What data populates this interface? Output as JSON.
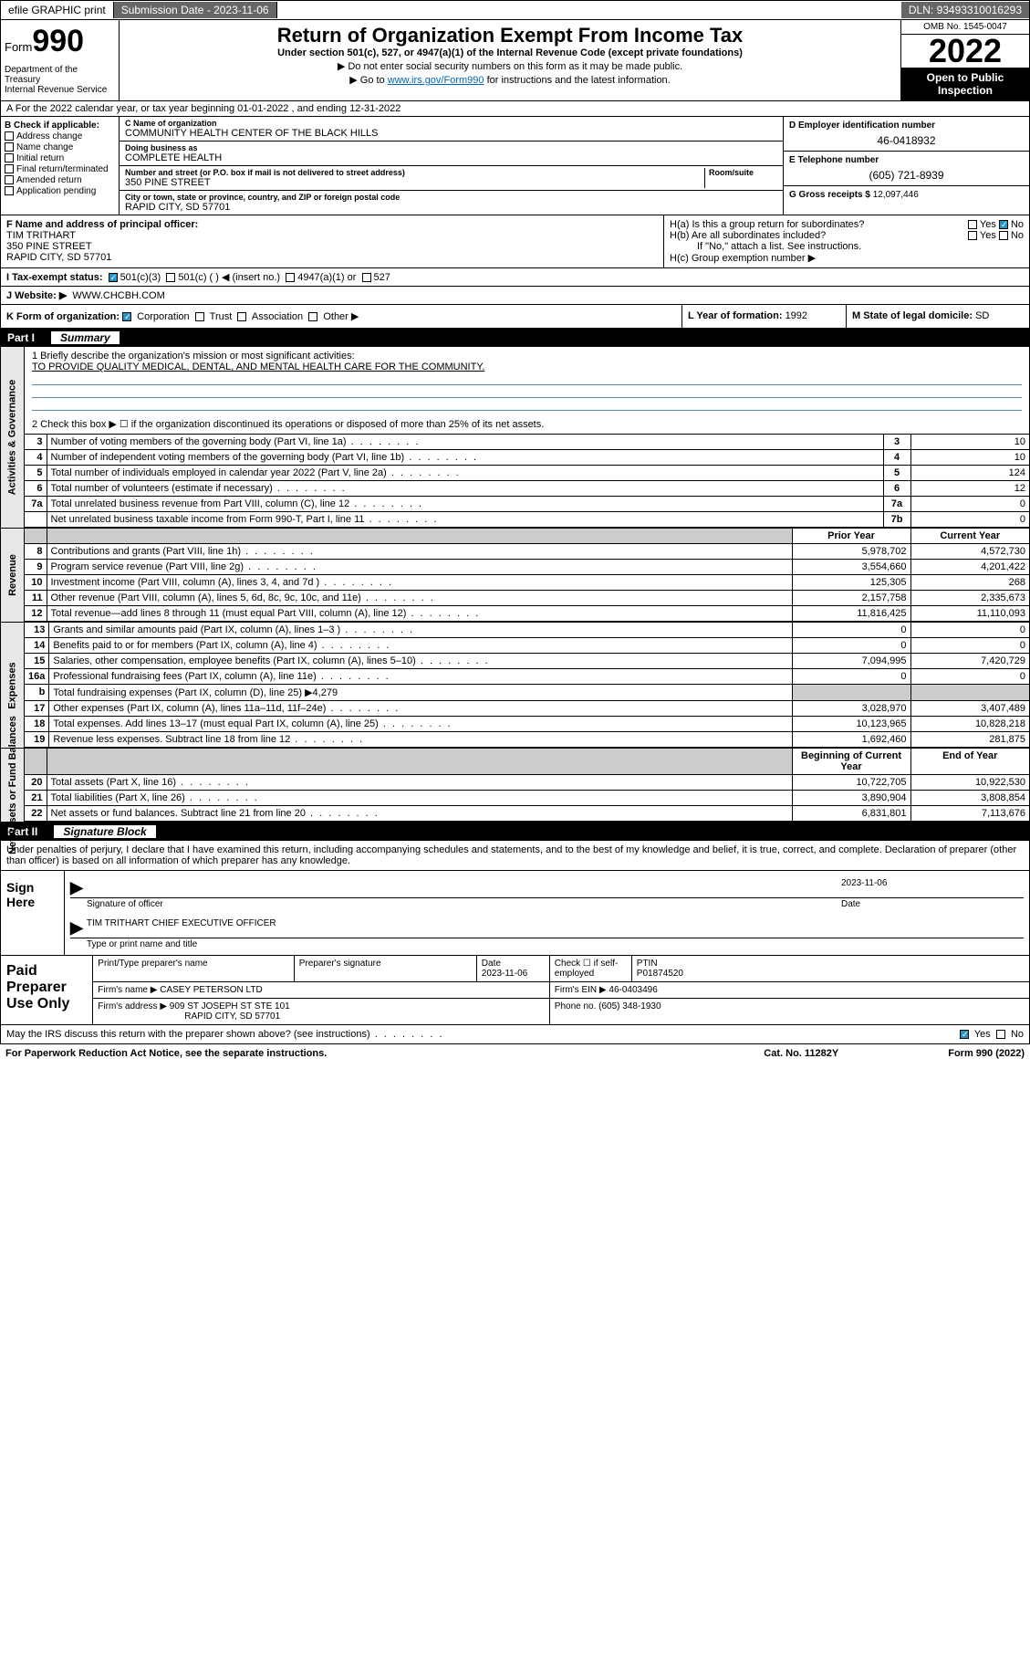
{
  "topbar": {
    "efile": "efile GRAPHIC print",
    "submission_label": "Submission Date - ",
    "submission_date": "2023-11-06",
    "dln_label": "DLN: ",
    "dln": "93493310016293"
  },
  "header": {
    "form_prefix": "Form",
    "form_no": "990",
    "dept": "Department of the Treasury\nInternal Revenue Service",
    "title": "Return of Organization Exempt From Income Tax",
    "subtitle": "Under section 501(c), 527, or 4947(a)(1) of the Internal Revenue Code (except private foundations)",
    "note1": "▶ Do not enter social security numbers on this form as it may be made public.",
    "note2_pre": "▶ Go to ",
    "note2_link": "www.irs.gov/Form990",
    "note2_post": " for instructions and the latest information.",
    "omb": "OMB No. 1545-0047",
    "year": "2022",
    "open": "Open to Public Inspection"
  },
  "row_a": "A For the 2022 calendar year, or tax year beginning 01-01-2022   , and ending 12-31-2022",
  "col_b": {
    "hdr": "B Check if applicable:",
    "items": [
      "Address change",
      "Name change",
      "Initial return",
      "Final return/terminated",
      "Amended return",
      "Application pending"
    ]
  },
  "col_c": {
    "name_lbl": "C Name of organization",
    "name": "COMMUNITY HEALTH CENTER OF THE BLACK HILLS",
    "dba_lbl": "Doing business as",
    "dba": "COMPLETE HEALTH",
    "addr_lbl": "Number and street (or P.O. box if mail is not delivered to street address)",
    "room_lbl": "Room/suite",
    "addr": "350 PINE STREET",
    "city_lbl": "City or town, state or province, country, and ZIP or foreign postal code",
    "city": "RAPID CITY, SD  57701"
  },
  "col_d": {
    "ein_lbl": "D Employer identification number",
    "ein": "46-0418932",
    "tel_lbl": "E Telephone number",
    "tel": "(605) 721-8939",
    "gross_lbl": "G Gross receipts $ ",
    "gross": "12,097,446"
  },
  "fgh": {
    "f_lbl": "F Name and address of principal officer:",
    "f_name": "TIM TRITHART",
    "f_addr1": "350 PINE STREET",
    "f_addr2": "RAPID CITY, SD  57701",
    "ha": "H(a)  Is this a group return for subordinates?",
    "hb": "H(b)  Are all subordinates included?",
    "hb_note": "If \"No,\" attach a list. See instructions.",
    "hc": "H(c)  Group exemption number ▶",
    "yes": "Yes",
    "no": "No"
  },
  "tax_status": {
    "lbl": "I   Tax-exempt status:",
    "opts": [
      "501(c)(3)",
      "501(c) (  ) ◀ (insert no.)",
      "4947(a)(1) or",
      "527"
    ]
  },
  "website": {
    "lbl": "J   Website: ▶",
    "val": "WWW.CHCBH.COM"
  },
  "k": {
    "lbl": "K Form of organization:",
    "opts": [
      "Corporation",
      "Trust",
      "Association",
      "Other ▶"
    ]
  },
  "l": {
    "lbl": "L Year of formation: ",
    "val": "1992"
  },
  "m": {
    "lbl": "M State of legal domicile: ",
    "val": "SD"
  },
  "part1": {
    "no": "Part I",
    "title": "Summary"
  },
  "summary": {
    "q1": "1   Briefly describe the organization's mission or most significant activities:",
    "a1": "TO PROVIDE QUALITY MEDICAL, DENTAL, AND MENTAL HEALTH CARE FOR THE COMMUNITY.",
    "q2": "2   Check this box ▶ ☐  if the organization discontinued its operations or disposed of more than 25% of its net assets."
  },
  "gov_rows": [
    {
      "n": "3",
      "t": "Number of voting members of the governing body (Part VI, line 1a)",
      "b": "3",
      "v": "10"
    },
    {
      "n": "4",
      "t": "Number of independent voting members of the governing body (Part VI, line 1b)",
      "b": "4",
      "v": "10"
    },
    {
      "n": "5",
      "t": "Total number of individuals employed in calendar year 2022 (Part V, line 2a)",
      "b": "5",
      "v": "124"
    },
    {
      "n": "6",
      "t": "Total number of volunteers (estimate if necessary)",
      "b": "6",
      "v": "12"
    },
    {
      "n": "7a",
      "t": "Total unrelated business revenue from Part VIII, column (C), line 12",
      "b": "7a",
      "v": "0"
    },
    {
      "n": "",
      "t": "Net unrelated business taxable income from Form 990-T, Part I, line 11",
      "b": "7b",
      "v": "0"
    }
  ],
  "col_hdrs": {
    "prior": "Prior Year",
    "current": "Current Year"
  },
  "rev_rows": [
    {
      "n": "8",
      "t": "Contributions and grants (Part VIII, line 1h)",
      "p": "5,978,702",
      "c": "4,572,730"
    },
    {
      "n": "9",
      "t": "Program service revenue (Part VIII, line 2g)",
      "p": "3,554,660",
      "c": "4,201,422"
    },
    {
      "n": "10",
      "t": "Investment income (Part VIII, column (A), lines 3, 4, and 7d )",
      "p": "125,305",
      "c": "268"
    },
    {
      "n": "11",
      "t": "Other revenue (Part VIII, column (A), lines 5, 6d, 8c, 9c, 10c, and 11e)",
      "p": "2,157,758",
      "c": "2,335,673"
    },
    {
      "n": "12",
      "t": "Total revenue—add lines 8 through 11 (must equal Part VIII, column (A), line 12)",
      "p": "11,816,425",
      "c": "11,110,093"
    }
  ],
  "exp_rows": [
    {
      "n": "13",
      "t": "Grants and similar amounts paid (Part IX, column (A), lines 1–3 )",
      "p": "0",
      "c": "0"
    },
    {
      "n": "14",
      "t": "Benefits paid to or for members (Part IX, column (A), line 4)",
      "p": "0",
      "c": "0"
    },
    {
      "n": "15",
      "t": "Salaries, other compensation, employee benefits (Part IX, column (A), lines 5–10)",
      "p": "7,094,995",
      "c": "7,420,729"
    },
    {
      "n": "16a",
      "t": "Professional fundraising fees (Part IX, column (A), line 11e)",
      "p": "0",
      "c": "0"
    },
    {
      "n": "b",
      "t": "Total fundraising expenses (Part IX, column (D), line 25) ▶4,279",
      "p": "",
      "c": "",
      "grey": true
    },
    {
      "n": "17",
      "t": "Other expenses (Part IX, column (A), lines 11a–11d, 11f–24e)",
      "p": "3,028,970",
      "c": "3,407,489"
    },
    {
      "n": "18",
      "t": "Total expenses. Add lines 13–17 (must equal Part IX, column (A), line 25)",
      "p": "10,123,965",
      "c": "10,828,218"
    },
    {
      "n": "19",
      "t": "Revenue less expenses. Subtract line 18 from line 12",
      "p": "1,692,460",
      "c": "281,875"
    }
  ],
  "net_hdrs": {
    "beg": "Beginning of Current Year",
    "end": "End of Year"
  },
  "net_rows": [
    {
      "n": "20",
      "t": "Total assets (Part X, line 16)",
      "p": "10,722,705",
      "c": "10,922,530"
    },
    {
      "n": "21",
      "t": "Total liabilities (Part X, line 26)",
      "p": "3,890,904",
      "c": "3,808,854"
    },
    {
      "n": "22",
      "t": "Net assets or fund balances. Subtract line 21 from line 20",
      "p": "6,831,801",
      "c": "7,113,676"
    }
  ],
  "side_labels": {
    "gov": "Activities & Governance",
    "rev": "Revenue",
    "exp": "Expenses",
    "net": "Net Assets or Fund Balances"
  },
  "part2": {
    "no": "Part II",
    "title": "Signature Block"
  },
  "sig_intro": "Under penalties of perjury, I declare that I have examined this return, including accompanying schedules and statements, and to the best of my knowledge and belief, it is true, correct, and complete. Declaration of preparer (other than officer) is based on all information of which preparer has any knowledge.",
  "sign": {
    "here": "Sign Here",
    "date": "2023-11-06",
    "sig_lbl": "Signature of officer",
    "date_lbl": "Date",
    "name": "TIM TRITHART CHIEF EXECUTIVE OFFICER",
    "name_lbl": "Type or print name and title"
  },
  "prep": {
    "title": "Paid Preparer Use Only",
    "h1": "Print/Type preparer's name",
    "h2": "Preparer's signature",
    "h3": "Date",
    "h3v": "2023-11-06",
    "h4": "Check ☐ if self-employed",
    "h5": "PTIN",
    "h5v": "P01874520",
    "firm_lbl": "Firm's name    ▶ ",
    "firm": "CASEY PETERSON LTD",
    "ein_lbl": "Firm's EIN ▶ ",
    "ein": "46-0403496",
    "addr_lbl": "Firm's address ▶ ",
    "addr1": "909 ST JOSEPH ST STE 101",
    "addr2": "RAPID CITY, SD  57701",
    "phone_lbl": "Phone no. ",
    "phone": "(605) 348-1930"
  },
  "footer": {
    "discuss": "May the IRS discuss this return with the preparer shown above? (see instructions)",
    "yes": "Yes",
    "no": "No",
    "pra": "For Paperwork Reduction Act Notice, see the separate instructions.",
    "cat": "Cat. No. 11282Y",
    "form": "Form 990 (2022)"
  }
}
